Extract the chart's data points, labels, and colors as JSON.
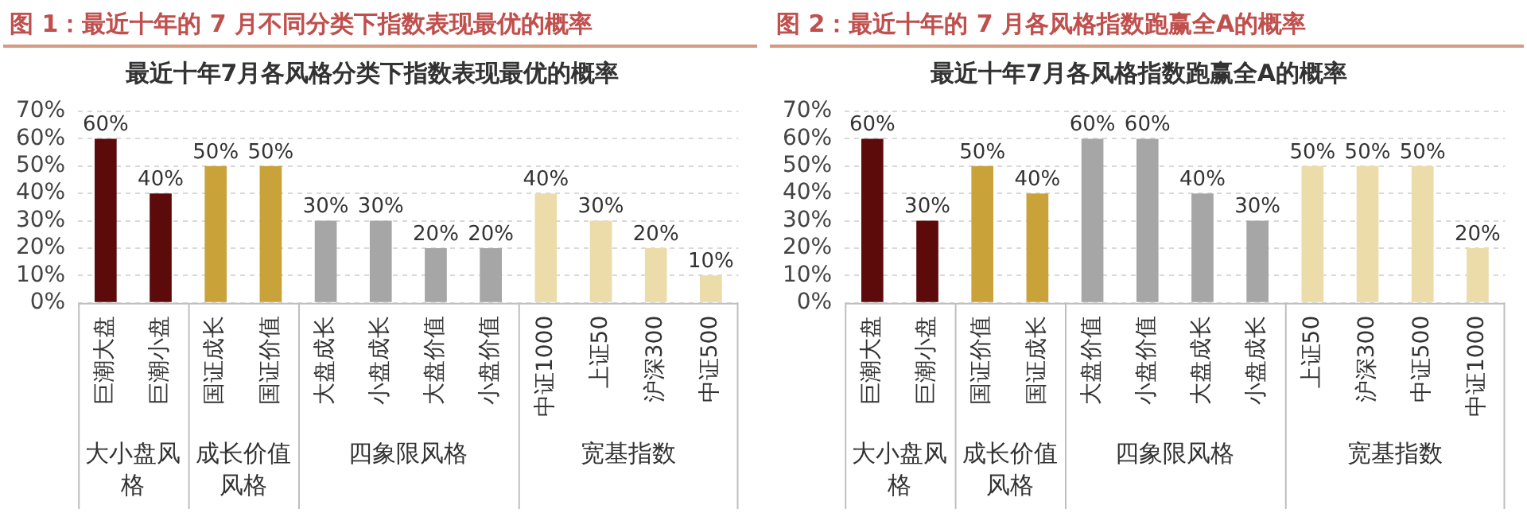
{
  "chart_data": [
    {
      "type": "bar",
      "title": "图 1：最近十年的 7 月不同分类下指数表现最优的概率",
      "subtitle": "最近十年7月各风格分类下指数表现最优的概率",
      "categories": [
        "巨潮大盘",
        "巨潮小盘",
        "国证成长",
        "国证价值",
        "大盘成长",
        "小盘成长",
        "大盘价值",
        "小盘价值",
        "中证1000",
        "上证50",
        "沪深300",
        "中证500"
      ],
      "values": [
        60,
        40,
        50,
        50,
        30,
        30,
        20,
        20,
        40,
        30,
        20,
        10
      ],
      "value_labels": [
        "60%",
        "40%",
        "50%",
        "50%",
        "30%",
        "30%",
        "20%",
        "20%",
        "40%",
        "30%",
        "20%",
        "10%"
      ],
      "colors": [
        "#5c0a0a",
        "#5c0a0a",
        "#c9a23a",
        "#c9a23a",
        "#a6a6a6",
        "#a6a6a6",
        "#a6a6a6",
        "#a6a6a6",
        "#ebdcaa",
        "#ebdcaa",
        "#ebdcaa",
        "#ebdcaa"
      ],
      "annotations": [
        "大小盘风格",
        "成长价值风格",
        "四象限风格",
        "宽基指数"
      ],
      "ylim": [
        0,
        70
      ],
      "yticks": [
        {
          "value": 0,
          "label": "0%"
        },
        {
          "value": 10,
          "label": "10%"
        },
        {
          "value": 20,
          "label": "20%"
        },
        {
          "value": 30,
          "label": "30%"
        },
        {
          "value": 40,
          "label": "40%"
        },
        {
          "value": 50,
          "label": "50%"
        },
        {
          "value": 60,
          "label": "60%"
        },
        {
          "value": 70,
          "label": "70%"
        }
      ],
      "grid": "y",
      "legend": false
    },
    {
      "type": "bar",
      "title": "图 2：最近十年的 7 月各风格指数跑赢全A的概率",
      "subtitle": "最近十年7月各风格指数跑赢全A的概率",
      "categories": [
        "巨潮大盘",
        "巨潮小盘",
        "国证价值",
        "国证成长",
        "大盘价值",
        "小盘价值",
        "大盘成长",
        "小盘成长",
        "上证50",
        "沪深300",
        "中证500",
        "中证1000"
      ],
      "values": [
        60,
        30,
        50,
        40,
        60,
        60,
        40,
        30,
        50,
        50,
        50,
        20
      ],
      "value_labels": [
        "60%",
        "30%",
        "50%",
        "40%",
        "60%",
        "60%",
        "40%",
        "30%",
        "50%",
        "50%",
        "50%",
        "20%"
      ],
      "colors": [
        "#5c0a0a",
        "#5c0a0a",
        "#c9a23a",
        "#c9a23a",
        "#a6a6a6",
        "#a6a6a6",
        "#a6a6a6",
        "#a6a6a6",
        "#ebdcaa",
        "#ebdcaa",
        "#ebdcaa",
        "#ebdcaa"
      ],
      "annotations": [
        "大小盘风格",
        "成长价值风格",
        "四象限风格",
        "宽基指数"
      ],
      "ylim": [
        0,
        70
      ],
      "yticks": [
        {
          "value": 0,
          "label": "0%"
        },
        {
          "value": 10,
          "label": "10%"
        },
        {
          "value": 20,
          "label": "20%"
        },
        {
          "value": 30,
          "label": "30%"
        },
        {
          "value": 40,
          "label": "40%"
        },
        {
          "value": 50,
          "label": "50%"
        },
        {
          "value": 60,
          "label": "60%"
        },
        {
          "value": 70,
          "label": "70%"
        }
      ],
      "grid": "y",
      "legend": false
    }
  ]
}
